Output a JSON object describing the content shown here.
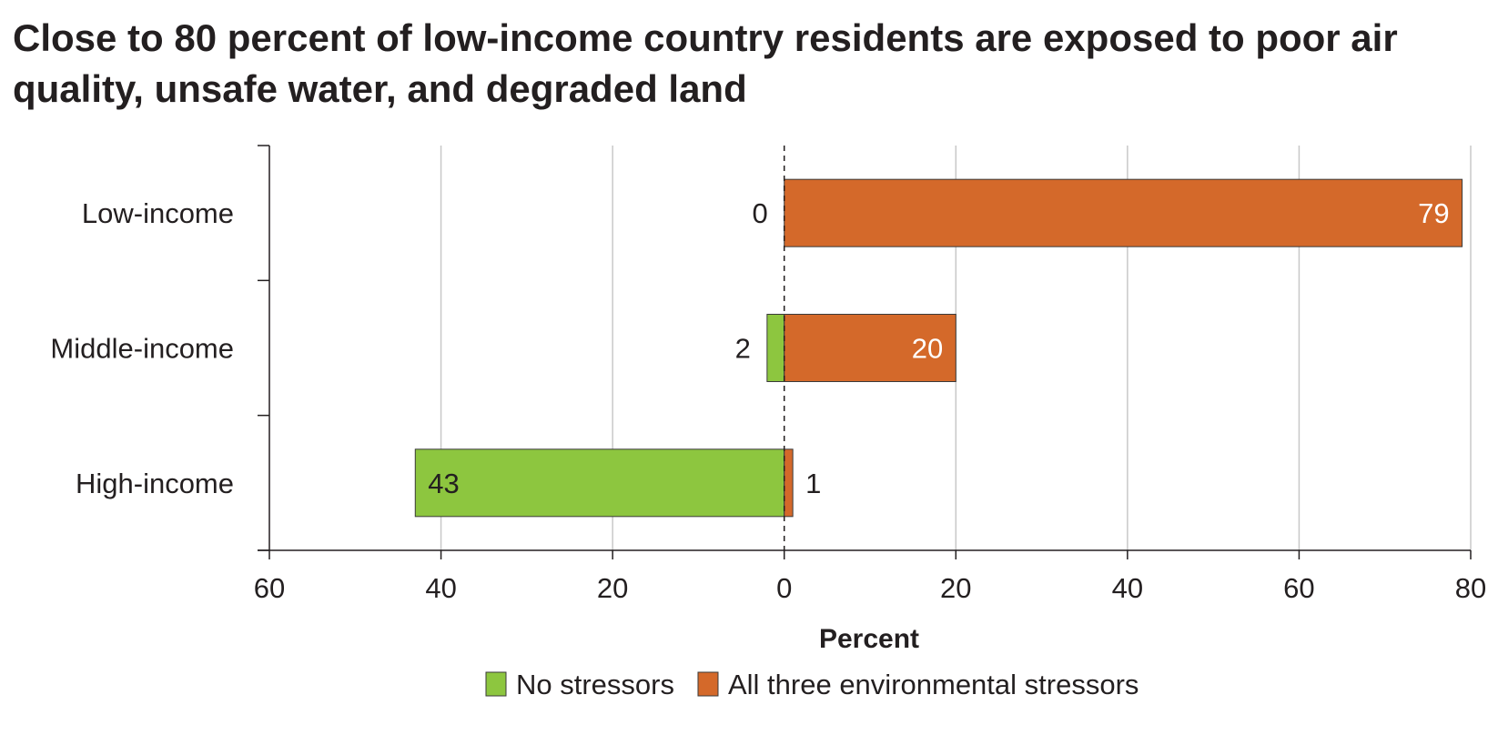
{
  "chart_data": {
    "type": "bar",
    "orientation": "horizontal",
    "stacking": "diverging",
    "title": "Close to 80 percent of low-income country residents are exposed to poor air quality, unsafe water, and degraded land",
    "xlabel": "Percent",
    "ylabel": "",
    "categories": [
      "Low-income",
      "Middle-income",
      "High-income"
    ],
    "xlim": [
      -60,
      80
    ],
    "xticks": [
      -60,
      -40,
      -20,
      0,
      20,
      40,
      60,
      80
    ],
    "xtick_labels": [
      "60",
      "40",
      "20",
      "0",
      "20",
      "40",
      "60",
      "80"
    ],
    "grid": "vertical",
    "zero_line": "dashed",
    "legend_position": "bottom",
    "series": [
      {
        "name": "No stressors",
        "direction": "left",
        "color": "#8dc63f",
        "values": [
          0,
          2,
          43
        ],
        "labels": [
          "0",
          "2",
          "43"
        ]
      },
      {
        "name": "All three environmental stressors",
        "direction": "right",
        "color": "#d4692a",
        "values": [
          79,
          20,
          1
        ],
        "labels": [
          "79",
          "20",
          "1"
        ]
      }
    ]
  }
}
